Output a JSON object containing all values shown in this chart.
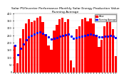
{
  "title": "Solar PV/Inverter Performance Monthly Solar Energy Production Value Running Average",
  "bar_values": [
    180,
    60,
    230,
    290,
    330,
    360,
    340,
    350,
    370,
    380,
    340,
    260,
    180,
    150,
    280,
    320,
    360,
    370,
    340,
    360,
    80,
    30,
    290,
    310,
    360,
    370,
    345,
    365,
    330,
    255,
    170,
    220,
    310,
    340,
    360,
    290,
    110
  ],
  "running_avg": [
    180,
    120,
    160,
    190,
    220,
    240,
    250,
    260,
    270,
    275,
    265,
    255,
    240,
    225,
    230,
    235,
    245,
    250,
    255,
    260,
    245,
    230,
    232,
    238,
    245,
    250,
    252,
    257,
    255,
    248,
    240,
    237,
    242,
    245,
    248,
    243,
    233
  ],
  "bar_color": "#FF0000",
  "avg_color": "#0000FF",
  "bg_color": "#FFFFFF",
  "plot_bg": "#FFFFFF",
  "grid_color": "#AAAAAA",
  "text_color": "#000000",
  "ylim": [
    0,
    400
  ],
  "ytick_vals": [
    0,
    50,
    100,
    150,
    200,
    250,
    300,
    350,
    400
  ],
  "ytick_labels": [
    "0",
    "50",
    "100",
    "150",
    "200",
    "250",
    "300",
    "350",
    "400"
  ],
  "legend_bar": "Value",
  "legend_avg": "Running Average",
  "title_fontsize": 3.2,
  "tick_fontsize": 2.5,
  "n_bars": 37
}
